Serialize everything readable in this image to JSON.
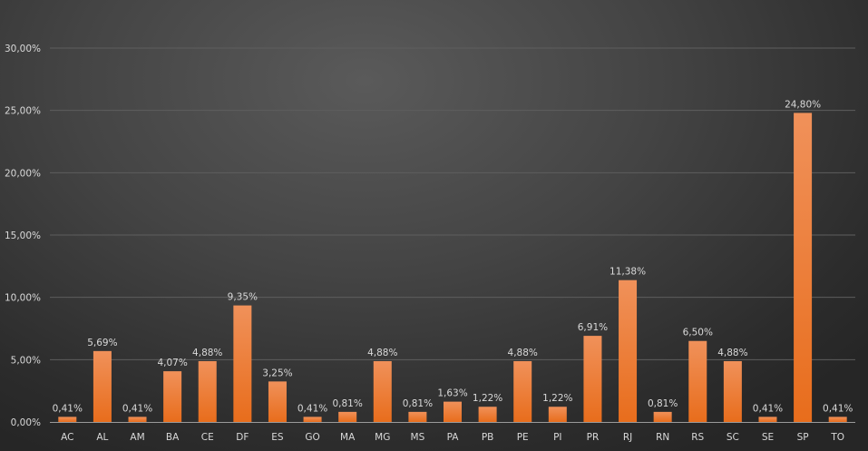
{
  "chart_data": {
    "type": "bar",
    "categories": [
      "AC",
      "AL",
      "AM",
      "BA",
      "CE",
      "DF",
      "ES",
      "GO",
      "MA",
      "MG",
      "MS",
      "PA",
      "PB",
      "PE",
      "PI",
      "PR",
      "RJ",
      "RN",
      "RS",
      "SC",
      "SE",
      "SP",
      "TO"
    ],
    "values": [
      0.41,
      5.69,
      0.41,
      4.07,
      4.88,
      9.35,
      3.25,
      0.41,
      0.81,
      4.88,
      0.81,
      1.63,
      1.22,
      4.88,
      1.22,
      6.91,
      11.38,
      0.81,
      6.5,
      4.88,
      0.41,
      24.8,
      0.41
    ],
    "data_labels": [
      "0,41%",
      "5,69%",
      "0,41%",
      "4,07%",
      "4,88%",
      "9,35%",
      "3,25%",
      "0,41%",
      "0,81%",
      "4,88%",
      "0,81%",
      "1,63%",
      "1,22%",
      "4,88%",
      "1,22%",
      "6,91%",
      "11,38%",
      "0,81%",
      "6,50%",
      "4,88%",
      "0,41%",
      "24,80%",
      "0,41%"
    ],
    "yticks": [
      0,
      5,
      10,
      15,
      20,
      25,
      30
    ],
    "ytick_labels": [
      "0,00%",
      "5,00%",
      "10,00%",
      "15,00%",
      "20,00%",
      "25,00%",
      "30,00%"
    ],
    "ylim": [
      0,
      30
    ],
    "grid": true,
    "legend": "none",
    "title": "",
    "xlabel": "",
    "ylabel": "",
    "colors": {
      "bar_top": "#f0915a",
      "bar_bottom": "#e86d1c",
      "grid": "#5e5e5e",
      "axis": "#9a9a9a",
      "text": "#d9d9d9"
    }
  }
}
